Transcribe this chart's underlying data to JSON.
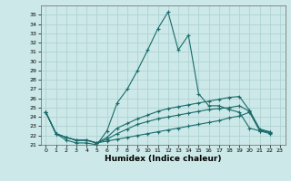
{
  "title": "",
  "xlabel": "Humidex (Indice chaleur)",
  "bg_color": "#cce8e8",
  "grid_color": "#aacfcf",
  "line_color": "#1a6b6b",
  "xlim": [
    -0.5,
    23.5
  ],
  "ylim": [
    21,
    36
  ],
  "xticks": [
    0,
    1,
    2,
    3,
    4,
    5,
    6,
    7,
    8,
    9,
    10,
    11,
    12,
    13,
    14,
    15,
    16,
    17,
    18,
    19,
    20,
    21,
    22,
    23
  ],
  "yticks": [
    21,
    22,
    23,
    24,
    25,
    26,
    27,
    28,
    29,
    30,
    31,
    32,
    33,
    34,
    35
  ],
  "series": [
    [
      24.5,
      22.2,
      21.5,
      21.2,
      21.2,
      21.0,
      22.5,
      25.5,
      27.0,
      29.0,
      31.2,
      33.5,
      35.3,
      31.2,
      32.8,
      26.5,
      25.2,
      25.2,
      24.8,
      24.5,
      22.8,
      22.5,
      22.4
    ],
    [
      24.5,
      22.2,
      21.8,
      21.5,
      21.5,
      21.2,
      21.8,
      22.8,
      23.3,
      23.8,
      24.2,
      24.6,
      24.9,
      25.1,
      25.3,
      25.5,
      25.7,
      25.9,
      26.1,
      26.2,
      24.7,
      22.7,
      22.4
    ],
    [
      24.5,
      22.2,
      21.8,
      21.5,
      21.5,
      21.2,
      21.6,
      22.2,
      22.7,
      23.2,
      23.5,
      23.8,
      24.0,
      24.2,
      24.4,
      24.6,
      24.8,
      24.9,
      25.0,
      25.2,
      24.6,
      22.6,
      22.3
    ],
    [
      24.5,
      22.2,
      21.8,
      21.5,
      21.5,
      21.2,
      21.4,
      21.6,
      21.8,
      22.0,
      22.2,
      22.4,
      22.6,
      22.8,
      23.0,
      23.2,
      23.4,
      23.6,
      23.9,
      24.1,
      24.5,
      22.5,
      22.2
    ]
  ],
  "marker": "+",
  "markersize": 3.5,
  "linewidth": 0.8,
  "xlabel_fontsize": 6.5,
  "tick_fontsize": 4.5
}
